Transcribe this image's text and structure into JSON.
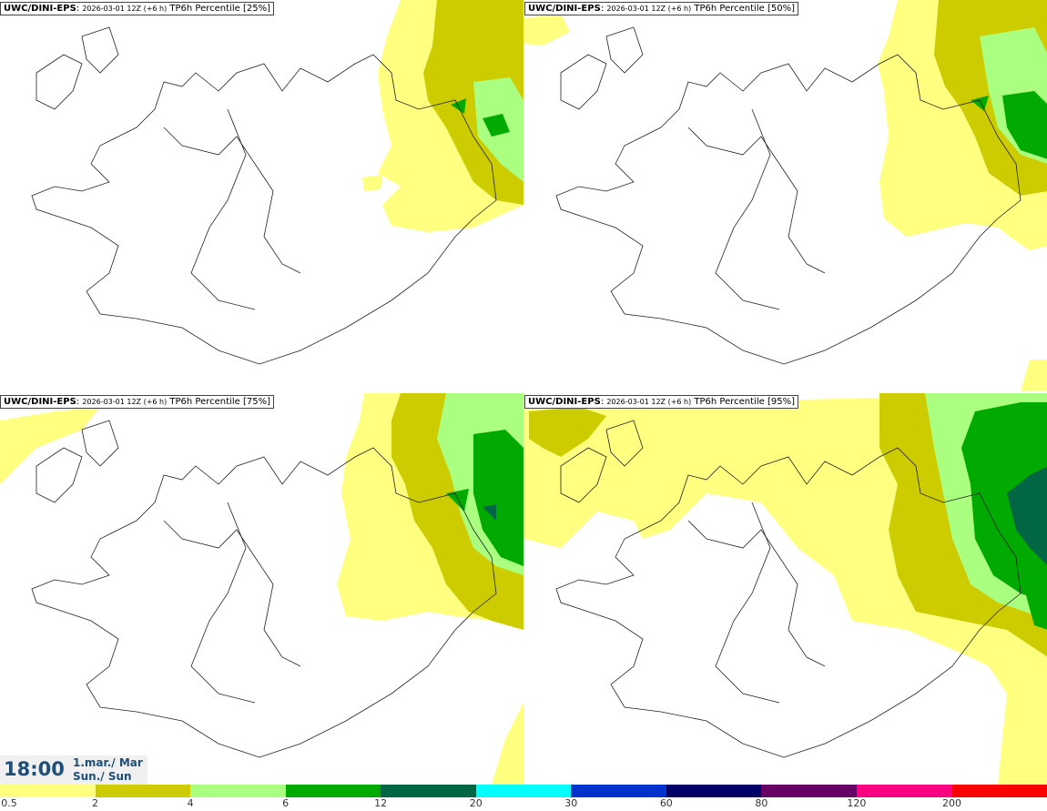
{
  "panels": [
    {
      "model": "UWC/DINI-EPS",
      "run": "2026-03-01 12Z (+6 h)",
      "field": "TP6h Percentile [25%]"
    },
    {
      "model": "UWC/DINI-EPS",
      "run": "2026-03-01 12Z (+6 h)",
      "field": "TP6h Percentile [50%]"
    },
    {
      "model": "UWC/DINI-EPS",
      "run": "2026-03-01 12Z (+6 h)",
      "field": "TP6h Percentile [75%]"
    },
    {
      "model": "UWC/DINI-EPS",
      "run": "2026-03-01 12Z (+6 h)",
      "field": "TP6h Percentile [95%]"
    }
  ],
  "valid_time": {
    "time": "18:00",
    "date_line1": "1.mar./ Mar",
    "date_line2": "Sun./ Sun"
  },
  "legend": {
    "colors": [
      "#ffff80",
      "#cccc00",
      "#aaff80",
      "#00aa00",
      "#006644",
      "#00ffff",
      "#0033cc",
      "#000066",
      "#660066",
      "#ff0080",
      "#ff0000"
    ],
    "labels": [
      "0.5",
      "2",
      "4",
      "6",
      "12",
      "20",
      "30",
      "60",
      "80",
      "120",
      "200"
    ]
  }
}
